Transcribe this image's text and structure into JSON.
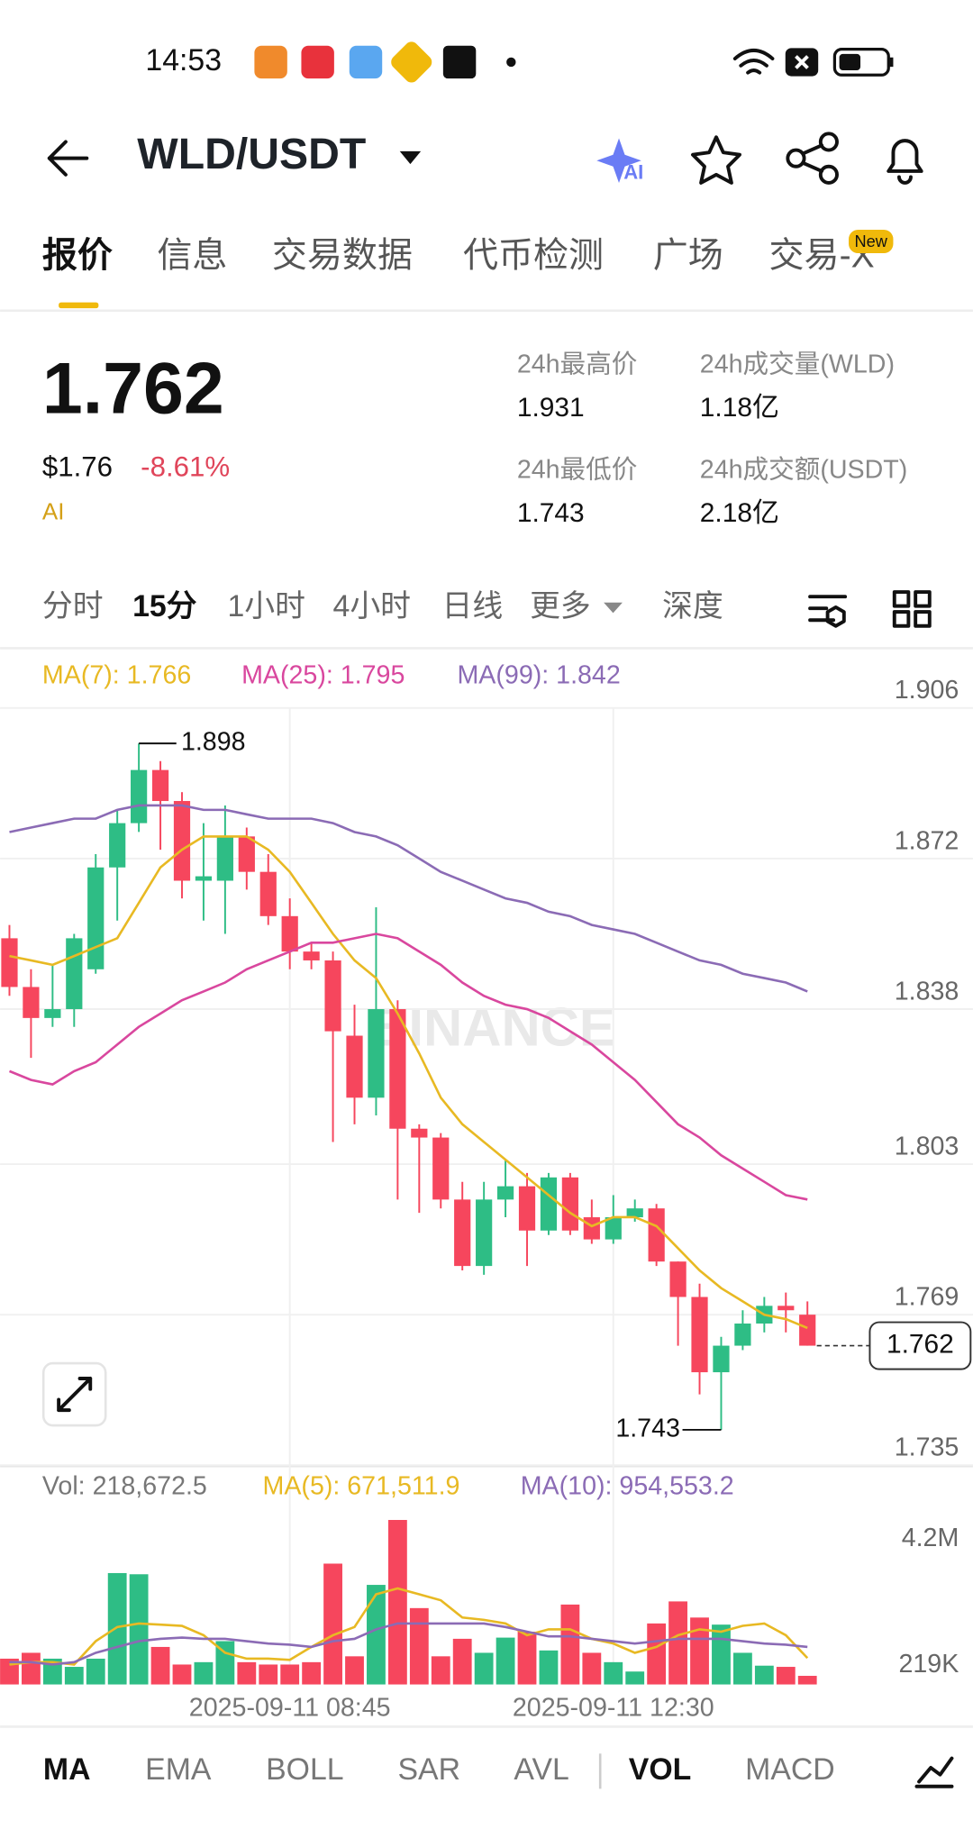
{
  "status_bar": {
    "time": "14:53"
  },
  "header": {
    "pair": "WLD/USDT",
    "ai": "AI"
  },
  "tabs": {
    "items": [
      "报价",
      "信息",
      "交易数据",
      "代币检测",
      "广场",
      "交易-X"
    ],
    "active": 0,
    "badge": "New"
  },
  "price": {
    "last": "1.762",
    "usd": "$1.76",
    "change": "-8.61%",
    "ai": "AI"
  },
  "stats": [
    {
      "label": "24h最高价",
      "value": "1.931"
    },
    {
      "label": "24h成交量(WLD)",
      "value": "1.18亿"
    },
    {
      "label": "24h最低价",
      "value": "1.743"
    },
    {
      "label": "24h成交额(USDT)",
      "value": "2.18亿"
    }
  ],
  "intervals": {
    "items": [
      "分时",
      "15分",
      "1小时",
      "4小时",
      "日线",
      "更多",
      "深度"
    ],
    "active": 1
  },
  "chart_data": {
    "type": "candlestick",
    "categories": [
      null,
      null,
      null,
      null,
      null,
      null,
      null,
      null,
      null,
      null,
      null,
      null,
      null,
      "2025-09-11 08:45",
      null,
      null,
      null,
      null,
      null,
      null,
      null,
      null,
      null,
      null,
      null,
      null,
      null,
      null,
      "2025-09-11 12:30",
      null,
      null,
      null,
      null,
      null,
      null,
      null,
      null,
      null
    ],
    "open": [
      1.854,
      1.843,
      1.836,
      1.838,
      1.847,
      1.87,
      1.88,
      1.892,
      1.885,
      1.867,
      1.867,
      1.877,
      1.869,
      1.859,
      1.851,
      1.849,
      1.832,
      1.818,
      1.838,
      1.811,
      1.809,
      1.795,
      1.78,
      1.795,
      1.798,
      1.788,
      1.8,
      1.791,
      1.786,
      1.791,
      1.793,
      1.781,
      1.773,
      1.756,
      1.762,
      1.767,
      1.771,
      1.769
    ],
    "high": [
      1.857,
      1.847,
      1.848,
      1.855,
      1.873,
      1.883,
      1.898,
      1.894,
      1.887,
      1.88,
      1.884,
      1.879,
      1.873,
      1.863,
      1.853,
      1.851,
      1.839,
      1.861,
      1.84,
      1.812,
      1.81,
      1.799,
      1.799,
      1.804,
      1.801,
      1.801,
      1.801,
      1.795,
      1.796,
      1.795,
      1.794,
      1.781,
      1.776,
      1.764,
      1.77,
      1.773,
      1.774,
      1.772
    ],
    "low": [
      1.841,
      1.827,
      1.834,
      1.834,
      1.846,
      1.858,
      1.878,
      1.874,
      1.863,
      1.858,
      1.855,
      1.865,
      1.857,
      1.847,
      1.847,
      1.808,
      1.812,
      1.814,
      1.795,
      1.792,
      1.793,
      1.779,
      1.778,
      1.791,
      1.78,
      1.787,
      1.787,
      1.785,
      1.785,
      1.79,
      1.78,
      1.762,
      1.751,
      1.743,
      1.761,
      1.765,
      1.765,
      1.762
    ],
    "close": [
      1.843,
      1.836,
      1.838,
      1.854,
      1.87,
      1.88,
      1.892,
      1.885,
      1.867,
      1.868,
      1.877,
      1.869,
      1.859,
      1.851,
      1.849,
      1.833,
      1.818,
      1.838,
      1.811,
      1.809,
      1.795,
      1.78,
      1.795,
      1.798,
      1.788,
      1.8,
      1.788,
      1.786,
      1.791,
      1.793,
      1.781,
      1.773,
      1.756,
      1.762,
      1.767,
      1.771,
      1.77,
      1.762
    ],
    "up_color": "#2ebd85",
    "down_color": "#f6465d",
    "ylim": [
      1.735,
      1.906
    ],
    "yticks": [
      1.906,
      1.872,
      1.838,
      1.803,
      1.769,
      1.735
    ],
    "grid": true,
    "series": [
      {
        "name": "MA(7): 1.766",
        "color": "#e8b923",
        "values": [
          1.85,
          1.849,
          1.848,
          1.85,
          1.852,
          1.854,
          1.862,
          1.87,
          1.874,
          1.877,
          1.877,
          1.877,
          1.874,
          1.869,
          1.862,
          1.855,
          1.849,
          1.845,
          1.837,
          1.828,
          1.818,
          1.812,
          1.808,
          1.804,
          1.8,
          1.796,
          1.792,
          1.789,
          1.791,
          1.791,
          1.789,
          1.784,
          1.779,
          1.775,
          1.772,
          1.769,
          1.768,
          1.766
        ]
      },
      {
        "name": "MA(25): 1.795",
        "color": "#d9479e",
        "values": [
          1.824,
          1.822,
          1.821,
          1.824,
          1.826,
          1.83,
          1.834,
          1.837,
          1.84,
          1.842,
          1.844,
          1.847,
          1.849,
          1.851,
          1.853,
          1.853,
          1.854,
          1.855,
          1.854,
          1.851,
          1.848,
          1.844,
          1.841,
          1.839,
          1.838,
          1.836,
          1.833,
          1.83,
          1.826,
          1.822,
          1.817,
          1.812,
          1.809,
          1.805,
          1.802,
          1.799,
          1.796,
          1.795
        ]
      },
      {
        "name": "MA(99): 1.842",
        "color": "#8b6bb5",
        "values": [
          1.878,
          1.879,
          1.88,
          1.881,
          1.881,
          1.883,
          1.884,
          1.884,
          1.884,
          1.883,
          1.883,
          1.882,
          1.881,
          1.881,
          1.881,
          1.88,
          1.878,
          1.877,
          1.875,
          1.872,
          1.869,
          1.867,
          1.865,
          1.863,
          1.862,
          1.86,
          1.859,
          1.857,
          1.856,
          1.855,
          1.853,
          1.851,
          1.849,
          1.848,
          1.846,
          1.845,
          1.844,
          1.842
        ]
      }
    ],
    "watermark": "BINANCE",
    "volume": {
      "name": "Vol: 218,672.5",
      "values": [
        655000,
        804000,
        655000,
        447000,
        655000,
        2830000,
        2800000,
        953000,
        506000,
        566000,
        1100000,
        566000,
        506000,
        506000,
        566000,
        3070000,
        715000,
        2530000,
        4180000,
        1940000,
        715000,
        1160000,
        804000,
        1190000,
        1340000,
        864000,
        2030000,
        804000,
        566000,
        328000,
        1550000,
        2110000,
        1700000,
        1520000,
        804000,
        477000,
        447000,
        218672.5
      ],
      "ylim": [
        0,
        4200000
      ],
      "yticks": [
        {
          "value": 4200000,
          "label": "4.2M"
        },
        {
          "value": 219000,
          "label": "219K"
        }
      ],
      "series": [
        {
          "name": "MA(5): 671,511.9",
          "color": "#e8b923",
          "values": [
            506000,
            566000,
            566000,
            506000,
            1100000,
            1460000,
            1550000,
            1520000,
            1490000,
            1250000,
            804000,
            655000,
            655000,
            626000,
            953000,
            1250000,
            1460000,
            2290000,
            2440000,
            2290000,
            2140000,
            1700000,
            1640000,
            1550000,
            1250000,
            1400000,
            1400000,
            1160000,
            1040000,
            804000,
            953000,
            1250000,
            1400000,
            1340000,
            1490000,
            1550000,
            1250000,
            671511.9
          ]
        },
        {
          "name": "MA(10): 954,553.2",
          "color": "#8b6bb5",
          "values": [
            566000,
            566000,
            506000,
            566000,
            804000,
            953000,
            1100000,
            1160000,
            1190000,
            1160000,
            1160000,
            1100000,
            1040000,
            1010000,
            953000,
            1100000,
            1160000,
            1400000,
            1550000,
            1550000,
            1550000,
            1550000,
            1550000,
            1460000,
            1340000,
            1220000,
            1220000,
            1160000,
            1100000,
            1040000,
            1100000,
            1160000,
            1160000,
            1160000,
            1100000,
            1040000,
            1010000,
            954553.2
          ]
        }
      ]
    }
  },
  "indicators": {
    "items": [
      "MA",
      "EMA",
      "BOLL",
      "SAR",
      "AVL",
      "VOL",
      "MACD"
    ],
    "active": [
      0,
      5
    ]
  }
}
